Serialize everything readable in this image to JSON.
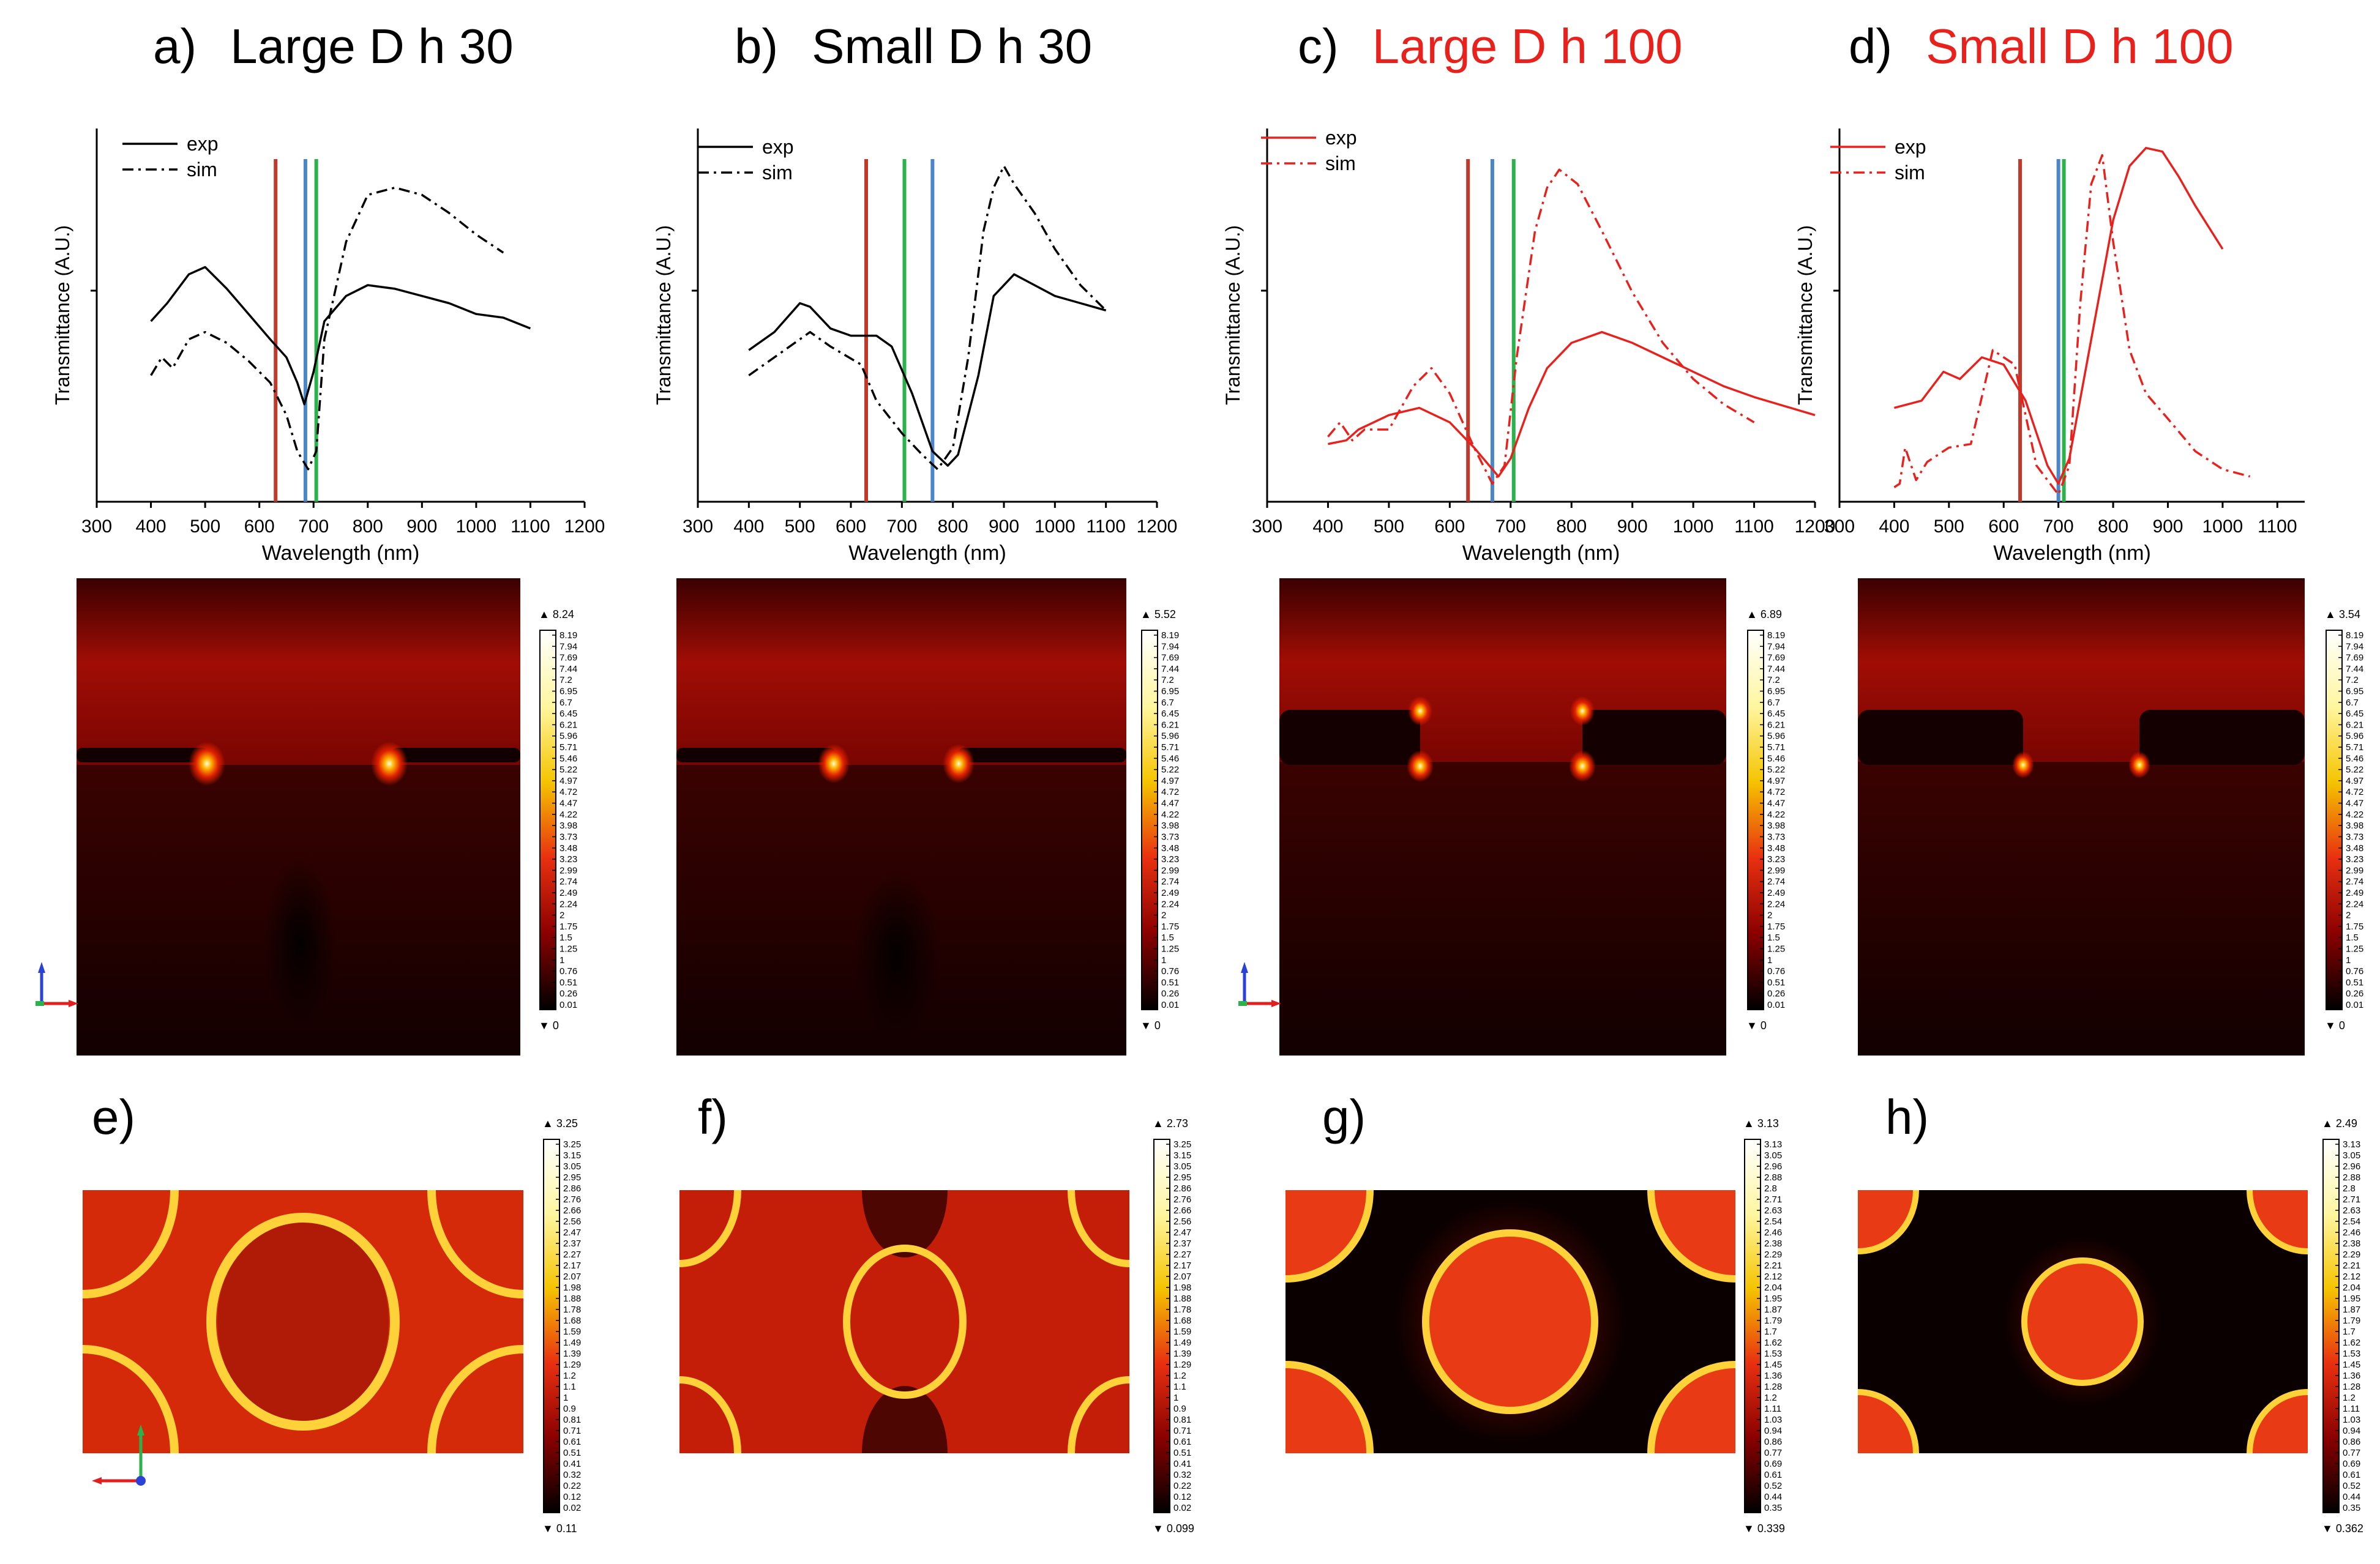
{
  "figure": {
    "panels": [
      {
        "letter": "a)",
        "title": "Large D h 30",
        "title_color": "#000000"
      },
      {
        "letter": "b)",
        "title": "Small D h 30",
        "title_color": "#000000"
      },
      {
        "letter": "c)",
        "title": "Large D h 100",
        "title_color": "#e8211d"
      },
      {
        "letter": "d)",
        "title": "Small D h 100",
        "title_color": "#e8211d"
      }
    ],
    "bottom_panels": [
      {
        "letter": "e)"
      },
      {
        "letter": "f)"
      },
      {
        "letter": "g)"
      },
      {
        "letter": "h)"
      }
    ]
  },
  "chart_data": [
    {
      "type": "line",
      "panel": "a",
      "title": "Large D h 30",
      "xlabel": "Wavelength (nm)",
      "ylabel": "Transmittance (A.U.)",
      "xlim": [
        300,
        1200
      ],
      "ylim": [
        0,
        1
      ],
      "xticks": [
        "300",
        "400",
        "500",
        "600",
        "700",
        "800",
        "900",
        "1000",
        "1100",
        "1200"
      ],
      "series_color": "#000000",
      "legend": [
        "exp",
        "sim"
      ],
      "vlines": [
        {
          "x": 630,
          "color": "#c0392b"
        },
        {
          "x": 685,
          "color": "#4a86c8"
        },
        {
          "x": 705,
          "color": "#2bb24c"
        }
      ],
      "series": [
        {
          "name": "exp",
          "style": "solid",
          "x": [
            400,
            430,
            470,
            500,
            540,
            580,
            620,
            650,
            670,
            683,
            700,
            720,
            760,
            800,
            850,
            900,
            950,
            1000,
            1050,
            1100
          ],
          "y": [
            0.5,
            0.55,
            0.63,
            0.65,
            0.59,
            0.52,
            0.45,
            0.4,
            0.33,
            0.27,
            0.36,
            0.5,
            0.57,
            0.6,
            0.59,
            0.57,
            0.55,
            0.52,
            0.51,
            0.48
          ]
        },
        {
          "name": "sim",
          "style": "dashdot",
          "x": [
            400,
            420,
            440,
            470,
            500,
            540,
            580,
            620,
            650,
            670,
            690,
            705,
            720,
            760,
            800,
            850,
            900,
            950,
            1000,
            1050
          ],
          "y": [
            0.35,
            0.4,
            0.37,
            0.45,
            0.47,
            0.44,
            0.39,
            0.33,
            0.24,
            0.14,
            0.09,
            0.14,
            0.45,
            0.72,
            0.85,
            0.87,
            0.85,
            0.8,
            0.74,
            0.69
          ]
        }
      ]
    },
    {
      "type": "line",
      "panel": "b",
      "title": "Small D h 30",
      "xlabel": "Wavelength (nm)",
      "ylabel": "Transmittance (A.U.)",
      "xlim": [
        300,
        1200
      ],
      "ylim": [
        0,
        1
      ],
      "xticks": [
        "300",
        "400",
        "500",
        "600",
        "700",
        "800",
        "900",
        "1000",
        "1100",
        "1200"
      ],
      "series_color": "#000000",
      "legend": [
        "exp",
        "sim"
      ],
      "vlines": [
        {
          "x": 630,
          "color": "#c0392b"
        },
        {
          "x": 705,
          "color": "#2bb24c"
        },
        {
          "x": 760,
          "color": "#4a86c8"
        }
      ],
      "series": [
        {
          "name": "exp",
          "style": "solid",
          "x": [
            400,
            450,
            500,
            520,
            560,
            600,
            650,
            680,
            720,
            760,
            790,
            810,
            850,
            880,
            920,
            960,
            1000,
            1050,
            1100
          ],
          "y": [
            0.42,
            0.47,
            0.55,
            0.54,
            0.48,
            0.46,
            0.46,
            0.43,
            0.3,
            0.14,
            0.1,
            0.13,
            0.35,
            0.57,
            0.63,
            0.6,
            0.57,
            0.55,
            0.53
          ]
        },
        {
          "name": "sim",
          "style": "dashdot",
          "x": [
            400,
            450,
            520,
            560,
            620,
            650,
            700,
            740,
            770,
            800,
            830,
            860,
            880,
            900,
            920,
            960,
            1000,
            1050,
            1100
          ],
          "y": [
            0.35,
            0.4,
            0.47,
            0.43,
            0.38,
            0.28,
            0.19,
            0.13,
            0.09,
            0.15,
            0.4,
            0.75,
            0.87,
            0.93,
            0.88,
            0.8,
            0.7,
            0.6,
            0.53
          ]
        }
      ]
    },
    {
      "type": "line",
      "panel": "c",
      "title": "Large D h 100",
      "xlabel": "Wavelength (nm)",
      "ylabel": "Transmittance (A.U.)",
      "xlim": [
        300,
        1200
      ],
      "ylim": [
        0,
        1
      ],
      "xticks": [
        "300",
        "400",
        "500",
        "600",
        "700",
        "800",
        "900",
        "1000",
        "1100",
        "1200"
      ],
      "series_color": "#e8211d",
      "legend": [
        "exp",
        "sim"
      ],
      "vlines": [
        {
          "x": 630,
          "color": "#c0392b"
        },
        {
          "x": 670,
          "color": "#4a86c8"
        },
        {
          "x": 705,
          "color": "#2bb24c"
        }
      ],
      "series": [
        {
          "name": "exp",
          "style": "solid",
          "x": [
            400,
            430,
            450,
            500,
            550,
            600,
            640,
            680,
            700,
            730,
            760,
            800,
            850,
            900,
            950,
            1000,
            1050,
            1100,
            1200
          ],
          "y": [
            0.16,
            0.17,
            0.2,
            0.24,
            0.26,
            0.22,
            0.15,
            0.07,
            0.12,
            0.26,
            0.37,
            0.44,
            0.47,
            0.44,
            0.4,
            0.36,
            0.32,
            0.29,
            0.24
          ]
        },
        {
          "name": "sim",
          "style": "dashdot",
          "x": [
            400,
            420,
            440,
            460,
            500,
            540,
            570,
            600,
            640,
            670,
            690,
            710,
            740,
            760,
            780,
            810,
            850,
            900,
            950,
            1000,
            1050,
            1100
          ],
          "y": [
            0.18,
            0.22,
            0.17,
            0.2,
            0.2,
            0.32,
            0.37,
            0.3,
            0.15,
            0.05,
            0.1,
            0.4,
            0.75,
            0.87,
            0.92,
            0.88,
            0.75,
            0.58,
            0.44,
            0.34,
            0.27,
            0.22
          ]
        }
      ]
    },
    {
      "type": "line",
      "panel": "d",
      "title": "Small D h 100",
      "xlabel": "Wavelength (nm)",
      "ylabel": "Transmittance (A.U.)",
      "xlim": [
        300,
        1150
      ],
      "ylim": [
        0,
        1
      ],
      "xticks": [
        "300",
        "400",
        "500",
        "600",
        "700",
        "800",
        "900",
        "1000",
        "1100"
      ],
      "series_color": "#e8211d",
      "legend": [
        "exp",
        "sim"
      ],
      "vlines": [
        {
          "x": 630,
          "color": "#c0392b"
        },
        {
          "x": 700,
          "color": "#4a86c8"
        },
        {
          "x": 710,
          "color": "#2bb24c"
        }
      ],
      "series": [
        {
          "name": "exp",
          "style": "solid",
          "x": [
            400,
            450,
            490,
            520,
            560,
            600,
            640,
            680,
            700,
            720,
            760,
            800,
            830,
            860,
            890,
            920,
            950,
            1000
          ],
          "y": [
            0.26,
            0.28,
            0.36,
            0.34,
            0.4,
            0.38,
            0.28,
            0.1,
            0.05,
            0.12,
            0.45,
            0.78,
            0.93,
            0.98,
            0.97,
            0.9,
            0.82,
            0.7
          ]
        },
        {
          "name": "sim",
          "style": "dashdot",
          "x": [
            400,
            410,
            420,
            440,
            460,
            500,
            540,
            580,
            620,
            660,
            700,
            720,
            740,
            760,
            780,
            800,
            830,
            860,
            900,
            950,
            1000,
            1050
          ],
          "y": [
            0.04,
            0.05,
            0.15,
            0.06,
            0.11,
            0.15,
            0.16,
            0.42,
            0.38,
            0.1,
            0.02,
            0.1,
            0.55,
            0.88,
            0.96,
            0.72,
            0.42,
            0.3,
            0.23,
            0.14,
            0.09,
            0.07
          ]
        }
      ]
    },
    {
      "type": "heatmap",
      "panel": "a-field",
      "description_from": "Large D h 30",
      "max_label": "▲ 8.24",
      "min_label": "▼ 0",
      "scale": [
        "8.19",
        "7.94",
        "7.69",
        "7.44",
        "7.2",
        "6.95",
        "6.7",
        "6.45",
        "6.21",
        "5.96",
        "5.71",
        "5.46",
        "5.22",
        "4.97",
        "4.72",
        "4.47",
        "4.22",
        "3.98",
        "3.73",
        "3.48",
        "3.23",
        "2.99",
        "2.74",
        "2.49",
        "2.24",
        "2",
        "1.75",
        "1.5",
        "1.25",
        "1",
        "0.76",
        "0.51",
        "0.26",
        "0.01"
      ]
    },
    {
      "type": "heatmap",
      "panel": "b-field",
      "max_label": "▲ 5.52",
      "min_label": "▼ 0",
      "scale": [
        "8.19",
        "7.94",
        "7.69",
        "7.44",
        "7.2",
        "6.95",
        "6.7",
        "6.45",
        "6.21",
        "5.96",
        "5.71",
        "5.46",
        "5.22",
        "4.97",
        "4.72",
        "4.47",
        "4.22",
        "3.98",
        "3.73",
        "3.48",
        "3.23",
        "2.99",
        "2.74",
        "2.49",
        "2.24",
        "2",
        "1.75",
        "1.5",
        "1.25",
        "1",
        "0.76",
        "0.51",
        "0.26",
        "0.01"
      ]
    },
    {
      "type": "heatmap",
      "panel": "c-field",
      "max_label": "▲ 6.89",
      "min_label": "▼ 0",
      "scale": [
        "8.19",
        "7.94",
        "7.69",
        "7.44",
        "7.2",
        "6.95",
        "6.7",
        "6.45",
        "6.21",
        "5.96",
        "5.71",
        "5.46",
        "5.22",
        "4.97",
        "4.72",
        "4.47",
        "4.22",
        "3.98",
        "3.73",
        "3.48",
        "3.23",
        "2.99",
        "2.74",
        "2.49",
        "2.24",
        "2",
        "1.75",
        "1.5",
        "1.25",
        "1",
        "0.76",
        "0.51",
        "0.26",
        "0.01"
      ]
    },
    {
      "type": "heatmap",
      "panel": "d-field",
      "max_label": "▲ 3.54",
      "min_label": "▼ 0",
      "scale": [
        "8.19",
        "7.94",
        "7.69",
        "7.44",
        "7.2",
        "6.95",
        "6.7",
        "6.45",
        "6.21",
        "5.96",
        "5.71",
        "5.46",
        "5.22",
        "4.97",
        "4.72",
        "4.47",
        "4.22",
        "3.98",
        "3.73",
        "3.48",
        "3.23",
        "2.99",
        "2.74",
        "2.49",
        "2.24",
        "2",
        "1.75",
        "1.5",
        "1.25",
        "1",
        "0.76",
        "0.51",
        "0.26",
        "0.01"
      ]
    },
    {
      "type": "heatmap",
      "panel": "e",
      "max_label": "▲ 3.25",
      "min_label": "▼ 0.11",
      "scale": [
        "3.25",
        "3.15",
        "3.05",
        "2.95",
        "2.86",
        "2.76",
        "2.66",
        "2.56",
        "2.47",
        "2.37",
        "2.27",
        "2.17",
        "2.07",
        "1.98",
        "1.88",
        "1.78",
        "1.68",
        "1.59",
        "1.49",
        "1.39",
        "1.29",
        "1.2",
        "1.1",
        "1",
        "0.9",
        "0.81",
        "0.71",
        "0.61",
        "0.51",
        "0.41",
        "0.32",
        "0.22",
        "0.12",
        "0.02"
      ]
    },
    {
      "type": "heatmap",
      "panel": "f",
      "max_label": "▲ 2.73",
      "min_label": "▼ 0.099",
      "scale": [
        "3.25",
        "3.15",
        "3.05",
        "2.95",
        "2.86",
        "2.76",
        "2.66",
        "2.56",
        "2.47",
        "2.37",
        "2.27",
        "2.17",
        "2.07",
        "1.98",
        "1.88",
        "1.78",
        "1.68",
        "1.59",
        "1.49",
        "1.39",
        "1.29",
        "1.2",
        "1.1",
        "1",
        "0.9",
        "0.81",
        "0.71",
        "0.61",
        "0.51",
        "0.41",
        "0.32",
        "0.22",
        "0.12",
        "0.02"
      ]
    },
    {
      "type": "heatmap",
      "panel": "g",
      "max_label": "▲ 3.13",
      "min_label": "▼ 0.339",
      "scale": [
        "3.13",
        "3.05",
        "2.96",
        "2.88",
        "2.8",
        "2.71",
        "2.63",
        "2.54",
        "2.46",
        "2.38",
        "2.29",
        "2.21",
        "2.12",
        "2.04",
        "1.95",
        "1.87",
        "1.79",
        "1.7",
        "1.62",
        "1.53",
        "1.45",
        "1.36",
        "1.28",
        "1.2",
        "1.11",
        "1.03",
        "0.94",
        "0.86",
        "0.77",
        "0.69",
        "0.61",
        "0.52",
        "0.44",
        "0.35"
      ]
    },
    {
      "type": "heatmap",
      "panel": "h",
      "max_label": "▲ 2.49",
      "min_label": "▼ 0.362",
      "scale": [
        "3.13",
        "3.05",
        "2.96",
        "2.88",
        "2.8",
        "2.71",
        "2.63",
        "2.54",
        "2.46",
        "2.38",
        "2.29",
        "2.21",
        "2.12",
        "2.04",
        "1.95",
        "1.87",
        "1.79",
        "1.7",
        "1.62",
        "1.53",
        "1.45",
        "1.36",
        "1.28",
        "1.2",
        "1.11",
        "1.03",
        "0.94",
        "0.86",
        "0.77",
        "0.69",
        "0.61",
        "0.52",
        "0.44",
        "0.35"
      ]
    }
  ]
}
